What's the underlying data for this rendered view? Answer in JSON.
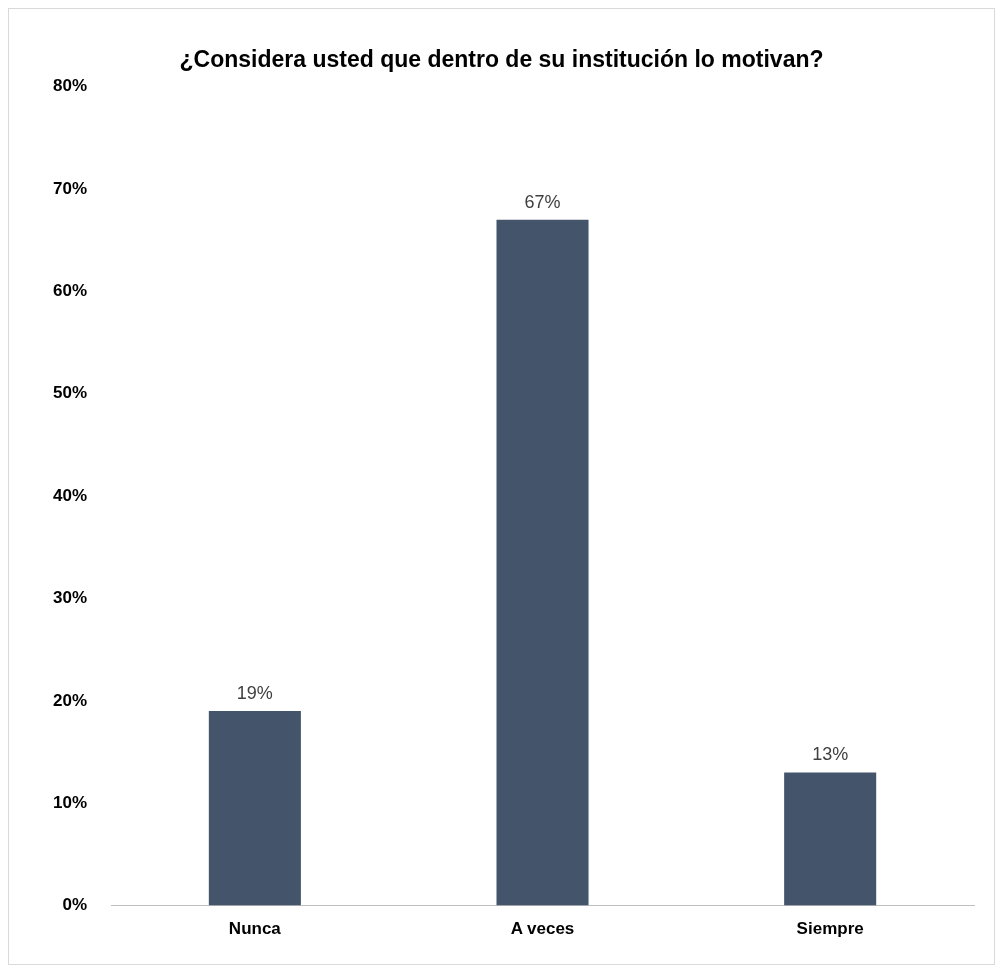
{
  "chart_data": {
    "type": "bar",
    "title": "¿Considera usted que dentro de su institución lo motivan?",
    "categories": [
      "Nunca",
      "A veces",
      "Siempre"
    ],
    "values": [
      19,
      67,
      13
    ],
    "color": "#44546a",
    "ylim": [
      0,
      80
    ],
    "yticks": [
      {
        "value": 0,
        "label": "0%"
      },
      {
        "value": 10,
        "label": "10%"
      },
      {
        "value": 20,
        "label": "20%"
      },
      {
        "value": 30,
        "label": "30%"
      },
      {
        "value": 40,
        "label": "40%"
      },
      {
        "value": 50,
        "label": "50%"
      },
      {
        "value": 60,
        "label": "60%"
      },
      {
        "value": 70,
        "label": "70%"
      },
      {
        "value": 80,
        "label": "80%"
      }
    ],
    "value_labels": [
      "19%",
      "67%",
      "13%"
    ],
    "grid": false,
    "legend": false
  }
}
